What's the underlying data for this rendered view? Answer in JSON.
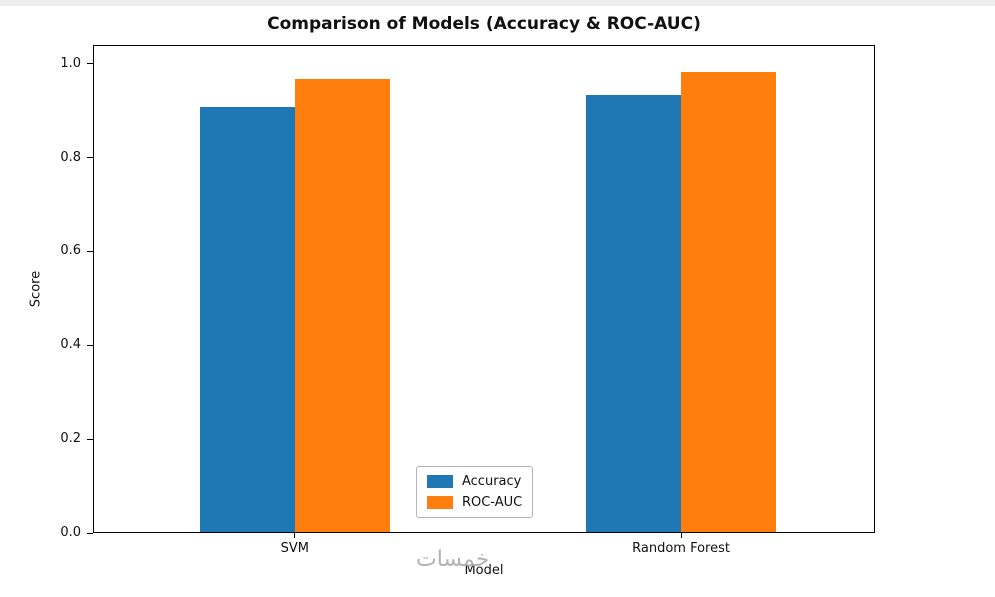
{
  "chart_data": {
    "type": "bar",
    "title": "Comparison of Models (Accuracy & ROC-AUC)",
    "xlabel": "Model",
    "ylabel": "Score",
    "categories": [
      "SVM",
      "Random Forest"
    ],
    "series": [
      {
        "name": "Accuracy",
        "color": "#1f77b4",
        "values": [
          0.91,
          0.935
        ]
      },
      {
        "name": "ROC-AUC",
        "color": "#ff7f0e",
        "values": [
          0.97,
          0.985
        ]
      }
    ],
    "ylim": [
      0,
      1.04
    ],
    "yticks": [
      0.0,
      0.2,
      0.4,
      0.6,
      0.8,
      1.0
    ],
    "ytick_labels": [
      "0.0",
      "0.2",
      "0.4",
      "0.6",
      "0.8",
      "1.0"
    ],
    "grid": false,
    "legend": {
      "position": "lower center",
      "entries": [
        "Accuracy",
        "ROC-AUC"
      ]
    },
    "bar_group_centers_pct": [
      25.8,
      75.2
    ]
  },
  "watermark": {
    "text": "خمسات"
  }
}
